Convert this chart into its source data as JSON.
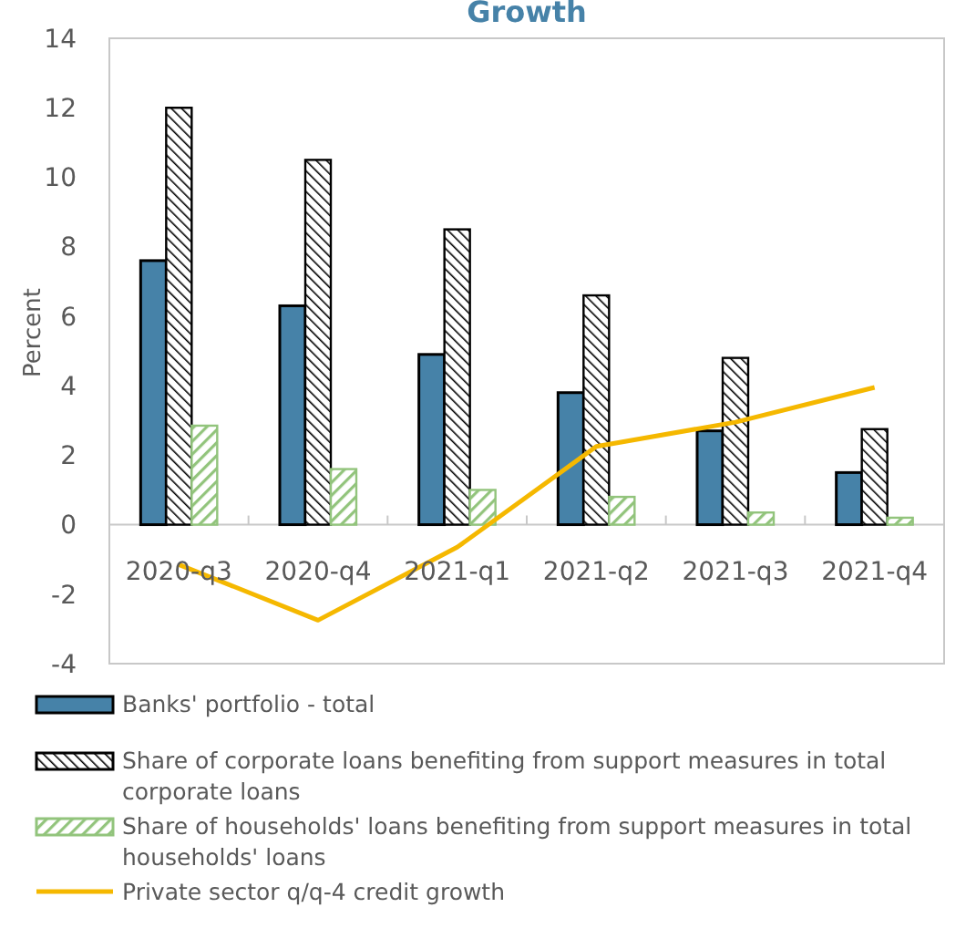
{
  "chart_data": {
    "type": "bar",
    "title": "Growth",
    "ylabel": "Percent",
    "categories": [
      "2020-q3",
      "2020-q4",
      "2021-q1",
      "2021-q2",
      "2021-q3",
      "2021-q4"
    ],
    "series": [
      {
        "name": "Banks' portfolio - total",
        "color": "#4682a8",
        "values": [
          7.6,
          6.3,
          4.9,
          3.8,
          2.7,
          1.5
        ]
      },
      {
        "name": "Share of corporate loans benefiting from support measures in total corporate loans",
        "color": "#000000",
        "values": [
          12.0,
          10.5,
          8.5,
          6.6,
          4.8,
          2.75
        ]
      },
      {
        "name": "Share of households' loans benefiting from support measures in total households' loans",
        "color": "#92c47c",
        "values": [
          2.85,
          1.6,
          1.0,
          0.8,
          0.35,
          0.2
        ]
      },
      {
        "name": "Private sector q/q-4 credit growth",
        "type": "line",
        "color": "#f5b800",
        "values": [
          -1.15,
          -2.75,
          -0.65,
          2.25,
          2.95,
          3.95
        ]
      }
    ],
    "ylim": [
      -4,
      14
    ],
    "yticks": [
      -4,
      -2,
      0,
      2,
      4,
      6,
      8,
      10,
      12,
      14
    ],
    "grid": false,
    "legend": "bottom"
  }
}
